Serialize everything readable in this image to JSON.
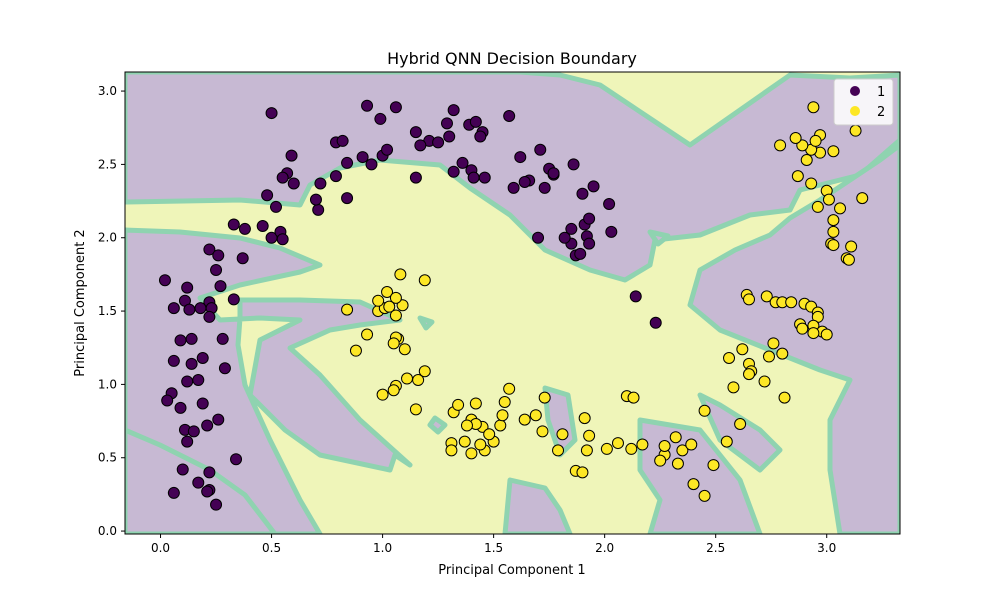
{
  "chart_data": {
    "type": "scatter",
    "title": "Hybrid QNN Decision Boundary",
    "xlabel": "Principal Component 1",
    "ylabel": "Principal Component 2",
    "xlim": [
      -0.16,
      3.33
    ],
    "ylim": [
      -0.02,
      3.13
    ],
    "xticks": [
      "0.0",
      "0.5",
      "1.0",
      "1.5",
      "2.0",
      "2.5",
      "3.0"
    ],
    "yticks": [
      "0.0",
      "0.5",
      "1.0",
      "1.5",
      "2.0",
      "2.5",
      "3.0"
    ],
    "grid": false,
    "legend_position": "top-right",
    "colors": {
      "class1": "#440154",
      "class2": "#fde725",
      "region1": "#c7b9d3",
      "region2": "#eff5b9",
      "boundary": "#8fd3b0"
    },
    "legend": [
      {
        "label": "1"
      },
      {
        "label": "2"
      }
    ],
    "series": [
      {
        "name": "1",
        "x": [
          0.5,
          0.93,
          1.06,
          0.99,
          1.32,
          1.29,
          1.39,
          1.42,
          1.57,
          0.79,
          0.82,
          0.91,
          1.0,
          1.15,
          1.21,
          1.3,
          1.45,
          1.44,
          1.25,
          1.17,
          0.57,
          0.59,
          0.55,
          0.6,
          0.72,
          0.79,
          0.84,
          0.95,
          1.02,
          1.36,
          1.4,
          1.62,
          1.66,
          1.71,
          1.75,
          1.77,
          0.48,
          0.52,
          0.71,
          0.7,
          0.84,
          1.15,
          1.32,
          1.41,
          1.46,
          1.59,
          1.64,
          1.73,
          1.77,
          1.86,
          1.9,
          1.95,
          2.02,
          1.85,
          1.87,
          1.7,
          1.91,
          1.93,
          1.92,
          2.03,
          1.93,
          1.89,
          1.85,
          1.82,
          0.33,
          0.38,
          0.46,
          0.5,
          0.54,
          0.55,
          0.22,
          0.26,
          0.37,
          0.02,
          0.12,
          0.27,
          0.25,
          0.22,
          0.23,
          0.33,
          0.06,
          0.11,
          0.13,
          0.18,
          0.22,
          0.09,
          0.14,
          0.28,
          0.06,
          0.14,
          0.29,
          0.19,
          0.05,
          0.12,
          0.17,
          0.03,
          0.09,
          0.19,
          0.11,
          0.21,
          0.26,
          0.12,
          0.15,
          0.1,
          0.22,
          0.34,
          0.06,
          0.22,
          0.17,
          0.21,
          0.25,
          2.14,
          2.23
        ],
        "y": [
          2.85,
          2.9,
          2.89,
          2.81,
          2.87,
          2.78,
          2.77,
          2.79,
          2.83,
          2.65,
          2.66,
          2.55,
          2.56,
          2.72,
          2.66,
          2.69,
          2.72,
          2.69,
          2.65,
          2.63,
          2.44,
          2.56,
          2.41,
          2.37,
          2.37,
          2.42,
          2.51,
          2.5,
          2.6,
          2.51,
          2.46,
          2.55,
          2.39,
          2.6,
          2.47,
          2.43,
          2.29,
          2.21,
          2.19,
          2.26,
          2.27,
          2.41,
          2.45,
          2.41,
          2.41,
          2.34,
          2.38,
          2.34,
          2.44,
          2.5,
          2.3,
          2.35,
          2.23,
          2.06,
          1.88,
          2.0,
          2.09,
          2.13,
          2.01,
          2.04,
          1.96,
          1.89,
          1.96,
          2.0,
          2.09,
          2.06,
          2.08,
          2.0,
          2.04,
          1.99,
          1.92,
          1.88,
          1.86,
          1.71,
          1.66,
          1.67,
          1.78,
          1.56,
          1.52,
          1.58,
          1.52,
          1.57,
          1.51,
          1.52,
          1.46,
          1.3,
          1.31,
          1.31,
          1.16,
          1.14,
          1.11,
          1.18,
          0.94,
          1.02,
          1.03,
          0.89,
          0.84,
          0.87,
          0.69,
          0.72,
          0.76,
          0.61,
          0.68,
          0.42,
          0.4,
          0.49,
          0.26,
          0.28,
          0.33,
          0.27,
          0.18,
          1.6,
          1.42
        ]
      },
      {
        "name": "2",
        "x": [
          2.94,
          2.97,
          2.97,
          2.93,
          2.91,
          2.89,
          2.86,
          2.79,
          2.95,
          3.03,
          3.13,
          2.87,
          2.93,
          3.0,
          2.96,
          3.01,
          3.16,
          3.06,
          3.03,
          3.03,
          3.02,
          3.03,
          3.09,
          3.1,
          3.11,
          2.64,
          2.65,
          2.73,
          2.77,
          2.8,
          2.84,
          2.9,
          2.93,
          2.96,
          2.96,
          2.94,
          2.88,
          2.89,
          2.98,
          2.76,
          2.94,
          3.0,
          2.62,
          2.74,
          2.8,
          2.56,
          2.65,
          2.66,
          2.65,
          2.72,
          2.81,
          2.58,
          2.45,
          2.61,
          2.55,
          2.49,
          2.27,
          2.33,
          2.35,
          2.39,
          2.25,
          2.27,
          2.32,
          2.17,
          2.12,
          2.06,
          2.01,
          1.93,
          1.81,
          1.87,
          1.9,
          1.92,
          1.72,
          1.79,
          1.64,
          1.69,
          1.73,
          1.57,
          1.53,
          1.45,
          1.55,
          1.4,
          1.42,
          1.31,
          1.46,
          1.5,
          1.48,
          1.44,
          1.4,
          1.54,
          1.38,
          1.31,
          1.37,
          1.32,
          1.42,
          1.34,
          1.15,
          1.06,
          1.16,
          1.19,
          1.11,
          1.05,
          1.0,
          1.07,
          1.1,
          1.06,
          1.05,
          0.93,
          0.88,
          0.98,
          1.01,
          0.84,
          1.02,
          1.06,
          1.09,
          0.98,
          1.06,
          1.03,
          1.19,
          1.08,
          2.4,
          2.45,
          1.91,
          2.1,
          2.13
        ],
        "y": [
          2.89,
          2.7,
          2.58,
          2.6,
          2.53,
          2.63,
          2.68,
          2.63,
          2.66,
          2.59,
          2.73,
          2.42,
          2.37,
          2.32,
          2.21,
          2.26,
          2.27,
          2.2,
          2.12,
          2.04,
          1.96,
          1.95,
          1.86,
          1.85,
          1.94,
          1.61,
          1.58,
          1.6,
          1.56,
          1.56,
          1.56,
          1.55,
          1.53,
          1.49,
          1.46,
          1.4,
          1.41,
          1.38,
          1.36,
          1.28,
          1.35,
          1.34,
          1.24,
          1.19,
          1.21,
          1.18,
          1.14,
          1.09,
          1.07,
          1.02,
          0.91,
          0.98,
          0.82,
          0.73,
          0.61,
          0.45,
          0.52,
          0.46,
          0.55,
          0.59,
          0.48,
          0.58,
          0.64,
          0.59,
          0.56,
          0.6,
          0.56,
          0.65,
          0.66,
          0.41,
          0.4,
          0.55,
          0.68,
          0.55,
          0.76,
          0.79,
          0.91,
          0.97,
          0.72,
          0.71,
          0.88,
          0.76,
          0.73,
          0.6,
          0.55,
          0.61,
          0.66,
          0.59,
          0.53,
          0.79,
          0.72,
          0.55,
          0.61,
          0.81,
          0.87,
          0.86,
          0.83,
          0.99,
          1.03,
          1.09,
          1.04,
          0.96,
          0.93,
          1.31,
          1.24,
          1.32,
          1.28,
          1.34,
          1.23,
          1.5,
          1.52,
          1.51,
          1.63,
          1.47,
          1.54,
          1.57,
          1.59,
          1.53,
          1.71,
          1.75,
          0.32,
          0.24,
          0.77,
          0.92,
          0.91
        ]
      }
    ]
  }
}
